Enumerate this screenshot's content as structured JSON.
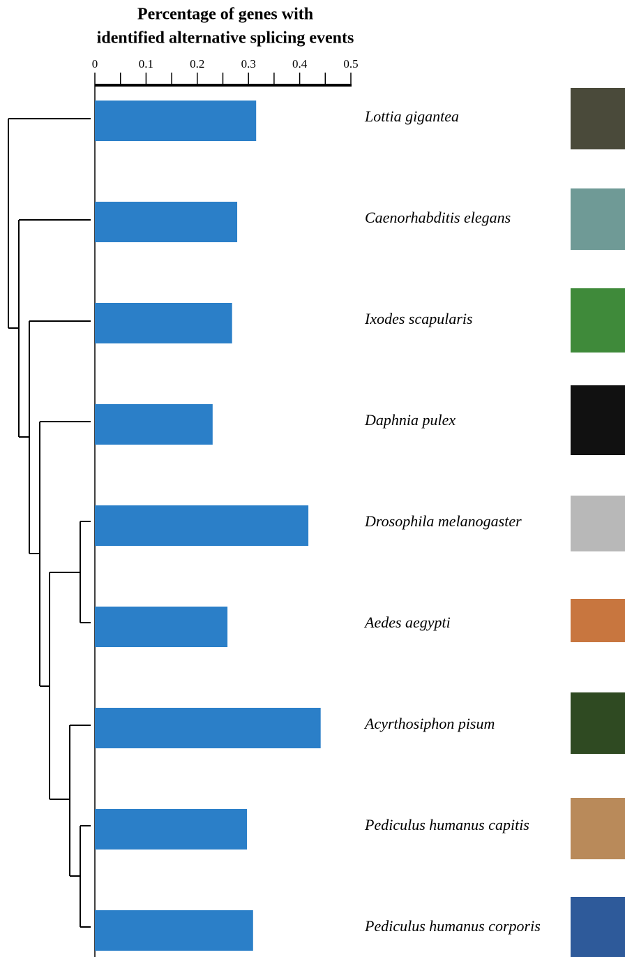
{
  "chart_data": {
    "type": "bar",
    "orientation": "horizontal",
    "title": [
      "Percentage of genes with",
      "identified alternative splicing events"
    ],
    "categories": [
      "Lottia gigantea",
      "Caenorhabditis elegans",
      "Ixodes scapularis",
      "Daphnia pulex",
      "Drosophila melanogaster",
      "Aedes aegypti",
      "Acyrthosiphon pisum",
      "Pediculus humanus capitis",
      "Pediculus humanus corporis"
    ],
    "values": [
      0.315,
      0.278,
      0.268,
      0.23,
      0.417,
      0.259,
      0.441,
      0.297,
      0.309
    ],
    "color": "#2b7fc8",
    "xlim": [
      0,
      0.5
    ],
    "xticks": [
      0,
      0.1,
      0.2,
      0.3,
      0.4,
      0.5
    ],
    "xminorticks": [
      0.05,
      0.15,
      0.25,
      0.35,
      0.45
    ],
    "grid": false
  }
}
